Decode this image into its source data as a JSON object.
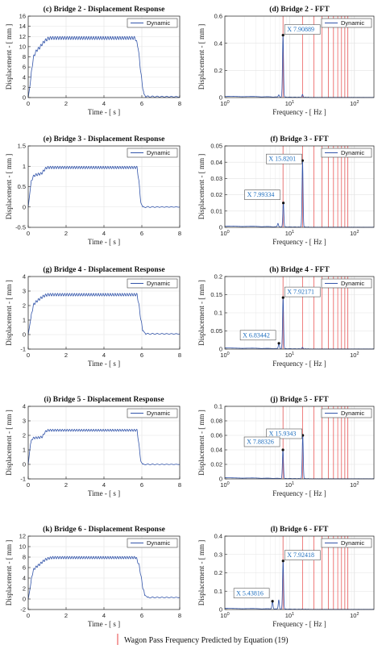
{
  "colors": {
    "series": "#3355aa",
    "marker": "#e84040",
    "datatip_text": "#1f6fbf",
    "grid": "#e3e3e3",
    "axis": "#222222"
  },
  "legend_label": "Dynamic",
  "caption": "Wagon Pass Frequency Predicted by Equation (19)",
  "chart_data": [
    {
      "id": "c",
      "type": "line",
      "title": "(c) Bridge 2 - Displacement Response",
      "xlabel": "Time - [ s ]",
      "ylabel": "Displacement - [ mm ]",
      "xlim": [
        0,
        8
      ],
      "ylim": [
        0,
        16
      ],
      "xticks": [
        0,
        2,
        4,
        6,
        8
      ],
      "yticks": [
        0,
        2,
        4,
        6,
        8,
        10,
        12,
        14,
        16
      ],
      "grid": true,
      "legend": "top-right",
      "series": [
        {
          "name": "Dynamic",
          "x": [
            0,
            0.1,
            0.2,
            0.3,
            0.45,
            0.6,
            0.75,
            0.9,
            1.05,
            1.2,
            5.65,
            5.8,
            5.9,
            6.0,
            6.1,
            6.2,
            8
          ],
          "y": [
            0,
            2.5,
            6,
            8.2,
            9.3,
            9.8,
            10.6,
            11.2,
            11.6,
            11.7,
            11.7,
            10,
            6.5,
            3.2,
            0.8,
            0.2,
            0.15
          ],
          "ripple": 0.6
        }
      ]
    },
    {
      "id": "d",
      "type": "line",
      "xscale": "log",
      "title": "(d) Bridge 2 - FFT",
      "xlabel": "Frequency - [ Hz ]",
      "ylabel": "Displacement - [ mm ]",
      "xlim": [
        1,
        200
      ],
      "ylim": [
        0,
        0.6
      ],
      "yticks": [
        0,
        0.2,
        0.4,
        0.6
      ],
      "xticklabels": [
        "10^0",
        "10^1",
        "10^2"
      ],
      "grid": true,
      "legend": "top-right",
      "wagon_pass_frequencies": [
        7.9,
        15.8,
        23.7,
        31.6,
        39.5,
        47.4,
        55.3,
        63.2,
        71.1,
        79
      ],
      "peaks": [
        {
          "f": 7.9,
          "a": 0.46
        },
        {
          "f": 6.8,
          "a": 0.015
        },
        {
          "f": 15.8,
          "a": 0.02
        }
      ],
      "datatips": [
        {
          "x_label": "X",
          "x_value": "7.90889",
          "f": 7.90889,
          "a": 0.46
        }
      ]
    },
    {
      "id": "e",
      "type": "line",
      "title": "(e) Bridge 3 - Displacement Response",
      "xlabel": "Time - [ s ]",
      "ylabel": "Displacement - [ mm ]",
      "xlim": [
        0,
        8
      ],
      "ylim": [
        -0.5,
        1.5
      ],
      "xticks": [
        0,
        2,
        4,
        6,
        8
      ],
      "yticks": [
        -0.5,
        0,
        0.5,
        1,
        1.5
      ],
      "grid": true,
      "legend": "top-right",
      "series": [
        {
          "name": "Dynamic",
          "x": [
            0,
            0.15,
            0.25,
            0.35,
            0.5,
            0.7,
            0.8,
            0.9,
            1.0,
            5.75,
            5.85,
            5.95,
            6.05,
            8
          ],
          "y": [
            0,
            0.6,
            0.74,
            0.78,
            0.8,
            0.82,
            0.88,
            0.94,
            0.97,
            0.97,
            0.6,
            0.1,
            0.0,
            0.0
          ],
          "ripple": 0.06
        }
      ]
    },
    {
      "id": "f",
      "type": "line",
      "xscale": "log",
      "title": "(f) Bridge 3 - FFT",
      "xlabel": "Frequency - [ Hz ]",
      "ylabel": "Displacement - [ mm ]",
      "xlim": [
        1,
        200
      ],
      "ylim": [
        0,
        0.05
      ],
      "yticks": [
        0,
        0.01,
        0.02,
        0.03,
        0.04,
        0.05
      ],
      "xticklabels": [
        "10^0",
        "10^1",
        "10^2"
      ],
      "grid": true,
      "legend": "top-right",
      "wagon_pass_frequencies": [
        7.9,
        15.8,
        23.7,
        31.6,
        39.5,
        47.4,
        55.3,
        63.2,
        71.1,
        79
      ],
      "peaks": [
        {
          "f": 7.99,
          "a": 0.015
        },
        {
          "f": 15.82,
          "a": 0.041
        },
        {
          "f": 6.6,
          "a": 0.002
        }
      ],
      "datatips": [
        {
          "x_label": "X",
          "x_value": "15.8201",
          "f": 15.8201,
          "a": 0.041
        },
        {
          "x_label": "X",
          "x_value": "7.99334",
          "f": 7.99334,
          "a": 0.015
        }
      ]
    },
    {
      "id": "g",
      "type": "line",
      "title": "(g) Bridge 4 - Displacement Response",
      "xlabel": "Time - [ s ]",
      "ylabel": "Displacement - [ mm ]",
      "xlim": [
        0,
        8
      ],
      "ylim": [
        -1,
        4
      ],
      "xticks": [
        0,
        2,
        4,
        6,
        8
      ],
      "yticks": [
        -1,
        0,
        1,
        2,
        3,
        4
      ],
      "grid": true,
      "legend": "top-right",
      "series": [
        {
          "name": "Dynamic",
          "x": [
            0,
            0.1,
            0.2,
            0.3,
            0.45,
            0.6,
            0.75,
            0.9,
            1.05,
            1.2,
            5.75,
            5.85,
            5.95,
            6.05,
            6.2,
            8
          ],
          "y": [
            0,
            0.8,
            1.6,
            2.1,
            2.3,
            2.45,
            2.6,
            2.7,
            2.75,
            2.75,
            2.75,
            2.0,
            1.0,
            0.3,
            0.05,
            0.05
          ],
          "ripple": 0.18
        }
      ]
    },
    {
      "id": "h",
      "type": "line",
      "xscale": "log",
      "title": "(h) Bridge 4 - FFT",
      "xlabel": "Frequency - [ Hz ]",
      "ylabel": "Displacement - [ mm ]",
      "xlim": [
        1,
        200
      ],
      "ylim": [
        0,
        0.2
      ],
      "yticks": [
        0,
        0.05,
        0.1,
        0.15,
        0.2
      ],
      "xticklabels": [
        "10^0",
        "10^1",
        "10^2"
      ],
      "grid": true,
      "legend": "top-right",
      "wagon_pass_frequencies": [
        7.9,
        15.8,
        23.7,
        31.6,
        39.5,
        47.4,
        55.3,
        63.2,
        71.1,
        79
      ],
      "peaks": [
        {
          "f": 7.92,
          "a": 0.142
        },
        {
          "f": 6.83,
          "a": 0.016
        },
        {
          "f": 15.8,
          "a": 0.004
        }
      ],
      "datatips": [
        {
          "x_label": "X",
          "x_value": "7.92171",
          "f": 7.92171,
          "a": 0.142
        },
        {
          "x_label": "X",
          "x_value": "6.83442",
          "f": 6.83442,
          "a": 0.016
        }
      ]
    },
    {
      "id": "i",
      "type": "line",
      "title": "(i) Bridge 5 - Displacement Response",
      "xlabel": "Time - [ s ]",
      "ylabel": "Displacement - [ mm ]",
      "xlim": [
        0,
        8
      ],
      "ylim": [
        -1,
        4
      ],
      "xticks": [
        0,
        2,
        4,
        6,
        8
      ],
      "yticks": [
        -1,
        0,
        1,
        2,
        3,
        4
      ],
      "grid": true,
      "legend": "top-right",
      "series": [
        {
          "name": "Dynamic",
          "x": [
            0,
            0.12,
            0.2,
            0.3,
            0.6,
            0.75,
            0.85,
            0.95,
            1.05,
            5.75,
            5.85,
            5.95,
            6.05,
            8
          ],
          "y": [
            0,
            1.4,
            1.75,
            1.82,
            1.85,
            1.9,
            2.15,
            2.3,
            2.35,
            2.35,
            1.3,
            0.2,
            0.0,
            0.0
          ],
          "ripple": 0.14
        }
      ]
    },
    {
      "id": "j",
      "type": "line",
      "xscale": "log",
      "title": "(j) Bridge 5 - FFT",
      "xlabel": "Frequency - [ Hz ]",
      "ylabel": "Displacement - [ mm ]",
      "xlim": [
        1,
        200
      ],
      "ylim": [
        0,
        0.1
      ],
      "yticks": [
        0,
        0.02,
        0.04,
        0.06,
        0.08,
        0.1
      ],
      "xticklabels": [
        "10^0",
        "10^1",
        "10^2"
      ],
      "grid": true,
      "legend": "top-right",
      "wagon_pass_frequencies": [
        7.9,
        15.8,
        23.7,
        31.6,
        39.5,
        47.4,
        55.3,
        63.2,
        71.1,
        79
      ],
      "peaks": [
        {
          "f": 7.88,
          "a": 0.04
        },
        {
          "f": 15.93,
          "a": 0.06
        }
      ],
      "datatips": [
        {
          "x_label": "X",
          "x_value": "15.9343",
          "f": 15.9343,
          "a": 0.06
        },
        {
          "x_label": "X",
          "x_value": "7.88326",
          "f": 7.88326,
          "a": 0.04
        }
      ]
    },
    {
      "id": "k",
      "type": "line",
      "title": "(k) Bridge 6 - Displacement Response",
      "xlabel": "Time - [ s ]",
      "ylabel": "Displacement - [ mm ]",
      "xlim": [
        0,
        8
      ],
      "ylim": [
        -2,
        12
      ],
      "xticks": [
        0,
        2,
        4,
        6,
        8
      ],
      "yticks": [
        -2,
        0,
        2,
        4,
        6,
        8,
        10,
        12
      ],
      "grid": true,
      "legend": "top-right",
      "series": [
        {
          "name": "Dynamic",
          "x": [
            0,
            0.1,
            0.2,
            0.3,
            0.45,
            0.6,
            0.75,
            0.9,
            1.1,
            1.3,
            5.7,
            5.85,
            5.95,
            6.05,
            6.15,
            6.3,
            8
          ],
          "y": [
            0,
            2,
            4.5,
            5.7,
            6.2,
            6.6,
            7.1,
            7.5,
            7.8,
            7.9,
            7.9,
            6.5,
            4.5,
            2.2,
            0.8,
            0.3,
            0.3
          ],
          "ripple": 0.45
        }
      ]
    },
    {
      "id": "l",
      "type": "line",
      "xscale": "log",
      "title": "(l) Bridge 6 - FFT",
      "xlabel": "Frequency - [ Hz ]",
      "ylabel": "Displacement - [ mm ]",
      "xlim": [
        1,
        200
      ],
      "ylim": [
        0,
        0.4
      ],
      "yticks": [
        0,
        0.1,
        0.2,
        0.3,
        0.4
      ],
      "xticklabels": [
        "10^0",
        "10^1",
        "10^2"
      ],
      "grid": true,
      "legend": "top-right",
      "wagon_pass_frequencies": [
        7.9,
        15.8,
        23.7,
        31.6,
        39.5,
        47.4,
        55.3,
        63.2,
        71.1,
        79
      ],
      "peaks": [
        {
          "f": 7.92,
          "a": 0.265
        },
        {
          "f": 5.44,
          "a": 0.045
        },
        {
          "f": 6.8,
          "a": 0.05
        }
      ],
      "datatips": [
        {
          "x_label": "X",
          "x_value": "7.92418",
          "f": 7.92418,
          "a": 0.265
        },
        {
          "x_label": "X",
          "x_value": "5.43816",
          "f": 5.43816,
          "a": 0.045
        }
      ]
    }
  ]
}
